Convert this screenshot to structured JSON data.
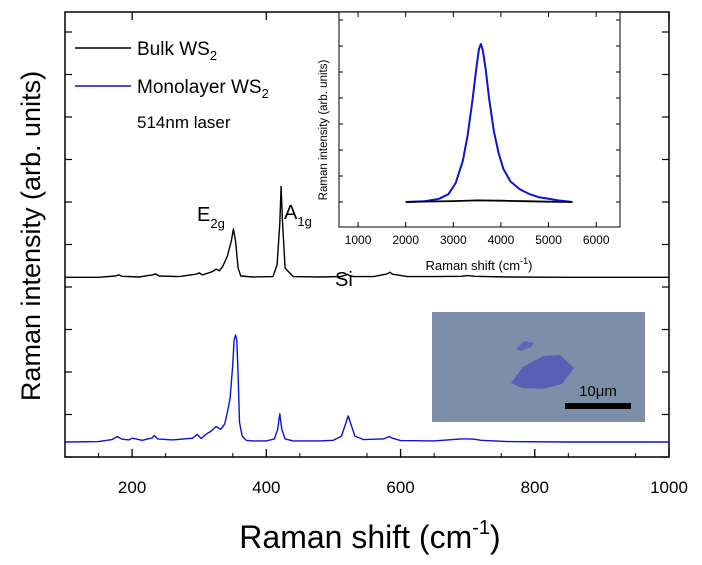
{
  "chart_data": [
    {
      "type": "line",
      "title": "",
      "xlabel": "Raman shift (cm",
      "xlabel_sup": "-1",
      "xlabel_close": ")",
      "ylabel": "Raman intensity (arb. units)",
      "xlim": [
        100,
        1000
      ],
      "ylim": [
        0,
        1
      ],
      "x_ticks": [
        200,
        400,
        600,
        800,
        1000
      ],
      "y_tick_labels": "none",
      "grid": false,
      "legend_position": "top-left",
      "note": "514nm laser",
      "annotations": [
        {
          "base": "E",
          "sub": "2g",
          "x": 350
        },
        {
          "base": "A",
          "sub": "1g",
          "x": 422
        },
        {
          "base": "Si",
          "sub": "",
          "x": 521
        }
      ],
      "series": [
        {
          "name_base": "Bulk WS",
          "name_sub": "2",
          "color": "#000000",
          "baseline": 0.483,
          "x": [
            100,
            150,
            175,
            180,
            185,
            210,
            230,
            235,
            240,
            270,
            295,
            300,
            305,
            320,
            325,
            330,
            335,
            342,
            348,
            351,
            354,
            358,
            362,
            380,
            410,
            416,
            420,
            422,
            424,
            428,
            440,
            480,
            510,
            518,
            521,
            524,
            530,
            560,
            580,
            584,
            588,
            610,
            650,
            690,
            700,
            710,
            760,
            850,
            1000
          ],
          "y": [
            0.483,
            0.483,
            0.487,
            0.49,
            0.486,
            0.484,
            0.49,
            0.493,
            0.487,
            0.485,
            0.492,
            0.496,
            0.49,
            0.5,
            0.507,
            0.502,
            0.515,
            0.545,
            0.59,
            0.624,
            0.59,
            0.51,
            0.487,
            0.484,
            0.485,
            0.52,
            0.64,
            0.748,
            0.65,
            0.51,
            0.485,
            0.484,
            0.485,
            0.489,
            0.492,
            0.488,
            0.485,
            0.485,
            0.493,
            0.498,
            0.492,
            0.485,
            0.485,
            0.486,
            0.488,
            0.486,
            0.484,
            0.483,
            0.483
          ]
        },
        {
          "name_base": "Monolayer WS",
          "name_sub": "2",
          "color": "#0a14d2",
          "baseline": 0.003,
          "x": [
            100,
            150,
            170,
            178,
            185,
            195,
            200,
            215,
            230,
            233,
            238,
            260,
            290,
            297,
            303,
            310,
            318,
            325,
            332,
            338,
            342,
            346,
            350,
            352,
            354,
            356,
            358,
            360,
            364,
            370,
            380,
            400,
            412,
            417,
            420,
            423,
            428,
            440,
            480,
            500,
            512,
            518,
            522,
            526,
            532,
            545,
            575,
            583,
            588,
            600,
            650,
            690,
            700,
            710,
            720,
            760,
            850,
            1000
          ],
          "y": [
            0.003,
            0.004,
            0.01,
            0.019,
            0.011,
            0.009,
            0.014,
            0.008,
            0.015,
            0.022,
            0.012,
            0.009,
            0.014,
            0.025,
            0.013,
            0.025,
            0.035,
            0.048,
            0.04,
            0.055,
            0.09,
            0.13,
            0.23,
            0.3,
            0.315,
            0.3,
            0.2,
            0.06,
            0.02,
            0.008,
            0.006,
            0.006,
            0.012,
            0.04,
            0.085,
            0.04,
            0.012,
            0.006,
            0.006,
            0.008,
            0.02,
            0.055,
            0.079,
            0.055,
            0.02,
            0.01,
            0.012,
            0.019,
            0.014,
            0.007,
            0.006,
            0.012,
            0.012,
            0.011,
            0.008,
            0.004,
            0.003,
            0.003
          ]
        }
      ]
    },
    {
      "type": "line",
      "title": "",
      "xlabel": "Raman shift (cm",
      "xlabel_sup": "-1",
      "xlabel_close": ")",
      "ylabel": "Raman intensity (arb. units)",
      "xlim": [
        600,
        6500
      ],
      "ylim": [
        0,
        1
      ],
      "x_ticks": [
        1000,
        2000,
        3000,
        4000,
        5000,
        6000
      ],
      "y_tick_labels": "none",
      "grid": false,
      "series": [
        {
          "name": "",
          "color": "#0a14d2",
          "x": [
            2000,
            2400,
            2700,
            2900,
            3050,
            3200,
            3300,
            3400,
            3480,
            3540,
            3580,
            3620,
            3680,
            3750,
            3850,
            3950,
            4050,
            4200,
            4400,
            4600,
            4800,
            5000,
            5200,
            5500
          ],
          "y": [
            0.0,
            0.005,
            0.02,
            0.05,
            0.12,
            0.26,
            0.42,
            0.64,
            0.84,
            0.97,
            1.0,
            0.96,
            0.84,
            0.66,
            0.45,
            0.31,
            0.21,
            0.13,
            0.08,
            0.05,
            0.03,
            0.02,
            0.01,
            0.0
          ]
        },
        {
          "name": "",
          "color": "#000000",
          "x": [
            2000,
            2500,
            3000,
            3500,
            4000,
            4500,
            5000,
            5500
          ],
          "y": [
            0.0,
            0.003,
            0.006,
            0.01,
            0.008,
            0.005,
            0.002,
            0.0
          ]
        }
      ]
    }
  ],
  "micrograph": {
    "scale_label": "10μm",
    "background_color": "#7d8ea8",
    "flake_color": "#5860b3"
  }
}
